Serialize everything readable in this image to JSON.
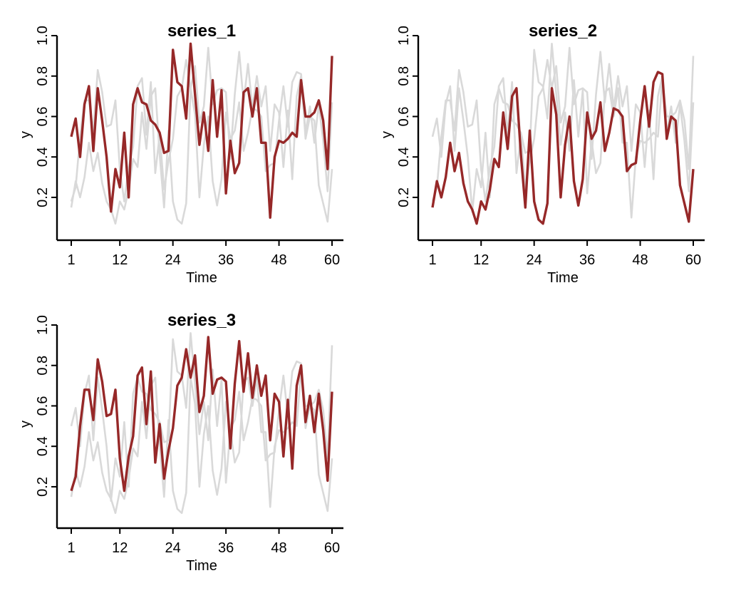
{
  "chart_data": [
    {
      "type": "line",
      "title": "series_1",
      "xlabel": "Time",
      "ylabel": "y",
      "xlim": [
        1,
        60
      ],
      "ylim": [
        0.02,
        1.0
      ],
      "xticks": [
        "1",
        "12",
        "24",
        "36",
        "48",
        "60"
      ],
      "yticks": [
        "0.2",
        "0.4",
        "0.6",
        "0.8",
        "1.0"
      ],
      "highlight_color": "#962828",
      "background_color": "#d9d9d9",
      "x": [
        1,
        2,
        3,
        4,
        5,
        6,
        7,
        8,
        9,
        10,
        11,
        12,
        13,
        14,
        15,
        16,
        17,
        18,
        19,
        20,
        21,
        22,
        23,
        24,
        25,
        26,
        27,
        28,
        29,
        30,
        31,
        32,
        33,
        34,
        35,
        36,
        37,
        38,
        39,
        40,
        41,
        42,
        43,
        44,
        45,
        46,
        47,
        48,
        49,
        50,
        51,
        52,
        53,
        54,
        55,
        56,
        57,
        58,
        59,
        60
      ],
      "series": [
        {
          "values": [
            0.5,
            0.59,
            0.4,
            0.66,
            0.75,
            0.43,
            0.74,
            0.58,
            0.4,
            0.13,
            0.34,
            0.25,
            0.52,
            0.2,
            0.66,
            0.74,
            0.67,
            0.66,
            0.58,
            0.56,
            0.52,
            0.42,
            0.43,
            0.93,
            0.77,
            0.75,
            0.59,
            0.96,
            0.71,
            0.46,
            0.62,
            0.43,
            0.78,
            0.5,
            0.73,
            0.22,
            0.48,
            0.32,
            0.37,
            0.72,
            0.74,
            0.6,
            0.74,
            0.47,
            0.47,
            0.1,
            0.4,
            0.48,
            0.47,
            0.49,
            0.52,
            0.5,
            0.78,
            0.6,
            0.6,
            0.62,
            0.68,
            0.58,
            0.34,
            0.9
          ]
        },
        {
          "values": [
            0.15,
            0.28,
            0.2,
            0.3,
            0.47,
            0.33,
            0.42,
            0.27,
            0.18,
            0.14,
            0.07,
            0.18,
            0.14,
            0.24,
            0.39,
            0.35,
            0.62,
            0.44,
            0.7,
            0.74,
            0.41,
            0.15,
            0.53,
            0.18,
            0.09,
            0.07,
            0.17,
            0.74,
            0.61,
            0.2,
            0.46,
            0.6,
            0.28,
            0.16,
            0.29,
            0.62,
            0.49,
            0.53,
            0.67,
            0.43,
            0.52,
            0.64,
            0.63,
            0.6,
            0.33,
            0.36,
            0.37,
            0.58,
            0.75,
            0.55,
            0.77,
            0.82,
            0.81,
            0.49,
            0.6,
            0.58,
            0.26,
            0.17,
            0.08,
            0.34
          ]
        },
        {
          "values": [
            0.18,
            0.25,
            0.5,
            0.68,
            0.68,
            0.53,
            0.83,
            0.72,
            0.55,
            0.56,
            0.68,
            0.34,
            0.18,
            0.35,
            0.45,
            0.75,
            0.79,
            0.51,
            0.77,
            0.32,
            0.51,
            0.24,
            0.38,
            0.49,
            0.7,
            0.74,
            0.88,
            0.74,
            0.85,
            0.57,
            0.65,
            0.94,
            0.66,
            0.73,
            0.74,
            0.72,
            0.39,
            0.71,
            0.92,
            0.67,
            0.86,
            0.64,
            0.8,
            0.65,
            0.75,
            0.43,
            0.66,
            0.62,
            0.35,
            0.63,
            0.29,
            0.7,
            0.8,
            0.52,
            0.65,
            0.47,
            0.66,
            0.48,
            0.23,
            0.67
          ]
        }
      ]
    },
    {
      "type": "line",
      "title": "series_2",
      "xlabel": "Time",
      "ylabel": "y",
      "xlim": [
        1,
        60
      ],
      "ylim": [
        0.02,
        1.0
      ],
      "xticks": [
        "1",
        "12",
        "24",
        "36",
        "48",
        "60"
      ],
      "yticks": [
        "0.2",
        "0.4",
        "0.6",
        "0.8",
        "1.0"
      ],
      "highlight_color": "#962828",
      "background_color": "#d9d9d9",
      "x": [
        1,
        2,
        3,
        4,
        5,
        6,
        7,
        8,
        9,
        10,
        11,
        12,
        13,
        14,
        15,
        16,
        17,
        18,
        19,
        20,
        21,
        22,
        23,
        24,
        25,
        26,
        27,
        28,
        29,
        30,
        31,
        32,
        33,
        34,
        35,
        36,
        37,
        38,
        39,
        40,
        41,
        42,
        43,
        44,
        45,
        46,
        47,
        48,
        49,
        50,
        51,
        52,
        53,
        54,
        55,
        56,
        57,
        58,
        59,
        60
      ],
      "series": [
        {
          "values": [
            0.5,
            0.59,
            0.4,
            0.66,
            0.75,
            0.43,
            0.74,
            0.58,
            0.4,
            0.13,
            0.34,
            0.25,
            0.52,
            0.2,
            0.66,
            0.74,
            0.67,
            0.66,
            0.58,
            0.56,
            0.52,
            0.42,
            0.43,
            0.93,
            0.77,
            0.75,
            0.59,
            0.96,
            0.71,
            0.46,
            0.62,
            0.43,
            0.78,
            0.5,
            0.73,
            0.22,
            0.48,
            0.32,
            0.37,
            0.72,
            0.74,
            0.6,
            0.74,
            0.47,
            0.47,
            0.1,
            0.4,
            0.48,
            0.47,
            0.49,
            0.52,
            0.5,
            0.78,
            0.6,
            0.6,
            0.62,
            0.68,
            0.58,
            0.34,
            0.9
          ]
        },
        {
          "values": [
            0.15,
            0.28,
            0.2,
            0.3,
            0.47,
            0.33,
            0.42,
            0.27,
            0.18,
            0.14,
            0.07,
            0.18,
            0.14,
            0.24,
            0.39,
            0.35,
            0.62,
            0.44,
            0.7,
            0.74,
            0.41,
            0.15,
            0.53,
            0.18,
            0.09,
            0.07,
            0.17,
            0.74,
            0.61,
            0.2,
            0.46,
            0.6,
            0.28,
            0.16,
            0.29,
            0.62,
            0.49,
            0.53,
            0.67,
            0.43,
            0.52,
            0.64,
            0.63,
            0.6,
            0.33,
            0.36,
            0.37,
            0.58,
            0.75,
            0.55,
            0.77,
            0.82,
            0.81,
            0.49,
            0.6,
            0.58,
            0.26,
            0.17,
            0.08,
            0.34
          ]
        },
        {
          "values": [
            0.18,
            0.25,
            0.5,
            0.68,
            0.68,
            0.53,
            0.83,
            0.72,
            0.55,
            0.56,
            0.68,
            0.34,
            0.18,
            0.35,
            0.45,
            0.75,
            0.79,
            0.51,
            0.77,
            0.32,
            0.51,
            0.24,
            0.38,
            0.49,
            0.7,
            0.74,
            0.88,
            0.74,
            0.85,
            0.57,
            0.65,
            0.94,
            0.66,
            0.73,
            0.74,
            0.72,
            0.39,
            0.71,
            0.92,
            0.67,
            0.86,
            0.64,
            0.8,
            0.65,
            0.75,
            0.43,
            0.66,
            0.62,
            0.35,
            0.63,
            0.29,
            0.7,
            0.8,
            0.52,
            0.65,
            0.47,
            0.66,
            0.48,
            0.23,
            0.67
          ]
        }
      ]
    },
    {
      "type": "line",
      "title": "series_3",
      "xlabel": "Time",
      "ylabel": "y",
      "xlim": [
        1,
        60
      ],
      "ylim": [
        0.02,
        1.0
      ],
      "xticks": [
        "1",
        "12",
        "24",
        "36",
        "48",
        "60"
      ],
      "yticks": [
        "0.2",
        "0.4",
        "0.6",
        "0.8",
        "1.0"
      ],
      "highlight_color": "#962828",
      "background_color": "#d9d9d9",
      "x": [
        1,
        2,
        3,
        4,
        5,
        6,
        7,
        8,
        9,
        10,
        11,
        12,
        13,
        14,
        15,
        16,
        17,
        18,
        19,
        20,
        21,
        22,
        23,
        24,
        25,
        26,
        27,
        28,
        29,
        30,
        31,
        32,
        33,
        34,
        35,
        36,
        37,
        38,
        39,
        40,
        41,
        42,
        43,
        44,
        45,
        46,
        47,
        48,
        49,
        50,
        51,
        52,
        53,
        54,
        55,
        56,
        57,
        58,
        59,
        60
      ],
      "series": [
        {
          "values": [
            0.5,
            0.59,
            0.4,
            0.66,
            0.75,
            0.43,
            0.74,
            0.58,
            0.4,
            0.13,
            0.34,
            0.25,
            0.52,
            0.2,
            0.66,
            0.74,
            0.67,
            0.66,
            0.58,
            0.56,
            0.52,
            0.42,
            0.43,
            0.93,
            0.77,
            0.75,
            0.59,
            0.96,
            0.71,
            0.46,
            0.62,
            0.43,
            0.78,
            0.5,
            0.73,
            0.22,
            0.48,
            0.32,
            0.37,
            0.72,
            0.74,
            0.6,
            0.74,
            0.47,
            0.47,
            0.1,
            0.4,
            0.48,
            0.47,
            0.49,
            0.52,
            0.5,
            0.78,
            0.6,
            0.6,
            0.62,
            0.68,
            0.58,
            0.34,
            0.9
          ]
        },
        {
          "values": [
            0.15,
            0.28,
            0.2,
            0.3,
            0.47,
            0.33,
            0.42,
            0.27,
            0.18,
            0.14,
            0.07,
            0.18,
            0.14,
            0.24,
            0.39,
            0.35,
            0.62,
            0.44,
            0.7,
            0.74,
            0.41,
            0.15,
            0.53,
            0.18,
            0.09,
            0.07,
            0.17,
            0.74,
            0.61,
            0.2,
            0.46,
            0.6,
            0.28,
            0.16,
            0.29,
            0.62,
            0.49,
            0.53,
            0.67,
            0.43,
            0.52,
            0.64,
            0.63,
            0.6,
            0.33,
            0.36,
            0.37,
            0.58,
            0.75,
            0.55,
            0.77,
            0.82,
            0.81,
            0.49,
            0.6,
            0.58,
            0.26,
            0.17,
            0.08,
            0.34
          ]
        },
        {
          "values": [
            0.18,
            0.25,
            0.5,
            0.68,
            0.68,
            0.53,
            0.83,
            0.72,
            0.55,
            0.56,
            0.68,
            0.34,
            0.18,
            0.35,
            0.45,
            0.75,
            0.79,
            0.51,
            0.77,
            0.32,
            0.51,
            0.24,
            0.38,
            0.49,
            0.7,
            0.74,
            0.88,
            0.74,
            0.85,
            0.57,
            0.65,
            0.94,
            0.66,
            0.73,
            0.74,
            0.72,
            0.39,
            0.71,
            0.92,
            0.67,
            0.86,
            0.64,
            0.8,
            0.65,
            0.75,
            0.43,
            0.66,
            0.62,
            0.35,
            0.63,
            0.29,
            0.7,
            0.8,
            0.52,
            0.65,
            0.47,
            0.66,
            0.48,
            0.23,
            0.67
          ]
        }
      ]
    }
  ]
}
